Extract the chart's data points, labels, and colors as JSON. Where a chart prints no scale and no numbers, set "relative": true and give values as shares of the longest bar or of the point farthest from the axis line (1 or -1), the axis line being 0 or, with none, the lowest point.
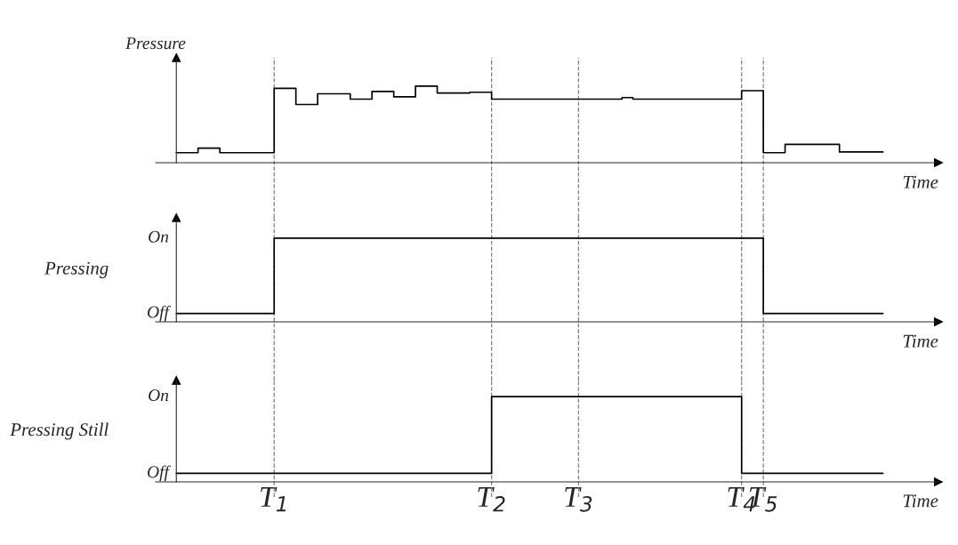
{
  "chart_data": [
    {
      "type": "step",
      "ylabel": "Pressure",
      "xlabel": "Time",
      "relative": true,
      "grid": "x",
      "categories": [
        null,
        null,
        null,
        null,
        null,
        null,
        null,
        null,
        null,
        null,
        null,
        null,
        null,
        null,
        null,
        null,
        null,
        null,
        null,
        null,
        null,
        null,
        null,
        null,
        null,
        null,
        null,
        null,
        null,
        null,
        null,
        null,
        null,
        null,
        null,
        null,
        null,
        null,
        null,
        null,
        null,
        null,
        null,
        null,
        null,
        null,
        null,
        null,
        null,
        null,
        null,
        null,
        null,
        null,
        null,
        null,
        null,
        null,
        null,
        null,
        null,
        null,
        null,
        null,
        null,
        null
      ],
      "series": [
        {
          "color": "#000000",
          "values": [
            0.13,
            0.13,
            0.19,
            0.19,
            0.13,
            0.13,
            0.13,
            0.13,
            0.13,
            0.97,
            0.97,
            0.76,
            0.76,
            0.9,
            0.9,
            0.9,
            0.83,
            0.83,
            0.93,
            0.93,
            0.86,
            0.86,
            1.0,
            1.0,
            0.91,
            0.91,
            0.91,
            0.92,
            0.92,
            0.83,
            0.83,
            0.83,
            0.83,
            0.83,
            0.83,
            0.83,
            0.83,
            0.83,
            0.83,
            0.83,
            0.83,
            0.85,
            0.83,
            0.83,
            0.83,
            0.83,
            0.83,
            0.83,
            0.83,
            0.83,
            0.83,
            0.83,
            0.94,
            0.94,
            0.13,
            0.13,
            0.24,
            0.24,
            0.24,
            0.24,
            0.24,
            0.14,
            0.14,
            0.14,
            0.14,
            0.14
          ]
        }
      ]
    },
    {
      "type": "step",
      "ylabel": "Pressing",
      "xlabel": "Time",
      "relative": true,
      "grid": "x",
      "categories": [
        null,
        null,
        null,
        null,
        null,
        null,
        null,
        null,
        null,
        null,
        null,
        null,
        null,
        null,
        null,
        null,
        null,
        null,
        null,
        null,
        null,
        null,
        null,
        null,
        null,
        null,
        null,
        null,
        null,
        null,
        null,
        null,
        null,
        null,
        null,
        null,
        null,
        null,
        null,
        null,
        null,
        null,
        null,
        null,
        null,
        null,
        null,
        null,
        null,
        null,
        null,
        null,
        null,
        null,
        null,
        null,
        null,
        null,
        null,
        null,
        null,
        null,
        null,
        null,
        null,
        null
      ],
      "series": [
        {
          "color": "#000000",
          "values": [
            0.1,
            0.1,
            0.1,
            0.1,
            0.1,
            0.1,
            0.1,
            0.1,
            0.1,
            1,
            1,
            1,
            1,
            1,
            1,
            1,
            1,
            1,
            1,
            1,
            1,
            1,
            1,
            1,
            1,
            1,
            1,
            1,
            1,
            1,
            1,
            1,
            1,
            1,
            1,
            1,
            1,
            1,
            1,
            1,
            1,
            1,
            1,
            1,
            1,
            1,
            1,
            1,
            1,
            1,
            1,
            1,
            1,
            1,
            0.1,
            0.1,
            0.1,
            0.1,
            0.1,
            0.1,
            0.1,
            0.1,
            0.1,
            0.1,
            0.1,
            0.1
          ]
        }
      ],
      "annotations": [
        "On",
        "Off"
      ]
    },
    {
      "type": "step",
      "ylabel": "Pressing Still",
      "xlabel": "Time",
      "relative": true,
      "grid": "x",
      "categories": [
        null,
        null,
        null,
        null,
        null,
        null,
        null,
        null,
        null,
        "T$_{1}$",
        null,
        null,
        null,
        null,
        null,
        null,
        null,
        null,
        null,
        null,
        null,
        null,
        null,
        null,
        null,
        null,
        null,
        null,
        null,
        "T$_{2}$",
        null,
        null,
        null,
        null,
        null,
        null,
        null,
        "T$_{3}$",
        null,
        null,
        null,
        null,
        null,
        null,
        null,
        null,
        null,
        null,
        null,
        null,
        null,
        null,
        "T$_{4}$",
        null,
        "T$_{5}$",
        null,
        null,
        null,
        null,
        null,
        null,
        null,
        null,
        null,
        null,
        null
      ],
      "series": [
        {
          "color": "#000000",
          "values": [
            0.1,
            0.1,
            0.1,
            0.1,
            0.1,
            0.1,
            0.1,
            0.1,
            0.1,
            0.1,
            0.1,
            0.1,
            0.1,
            0.1,
            0.1,
            0.1,
            0.1,
            0.1,
            0.1,
            0.1,
            0.1,
            0.1,
            0.1,
            0.1,
            0.1,
            0.1,
            0.1,
            0.1,
            0.1,
            1,
            1,
            1,
            1,
            1,
            1,
            1,
            1,
            1,
            1,
            1,
            1,
            1,
            1,
            1,
            1,
            1,
            1,
            1,
            1,
            1,
            1,
            1,
            0.1,
            0.1,
            0.1,
            0.1,
            0.1,
            0.1,
            0.1,
            0.1,
            0.1,
            0.1,
            0.1,
            0.1,
            0.1,
            0.1
          ]
        }
      ],
      "annotations": [
        "On",
        "Off"
      ]
    }
  ]
}
